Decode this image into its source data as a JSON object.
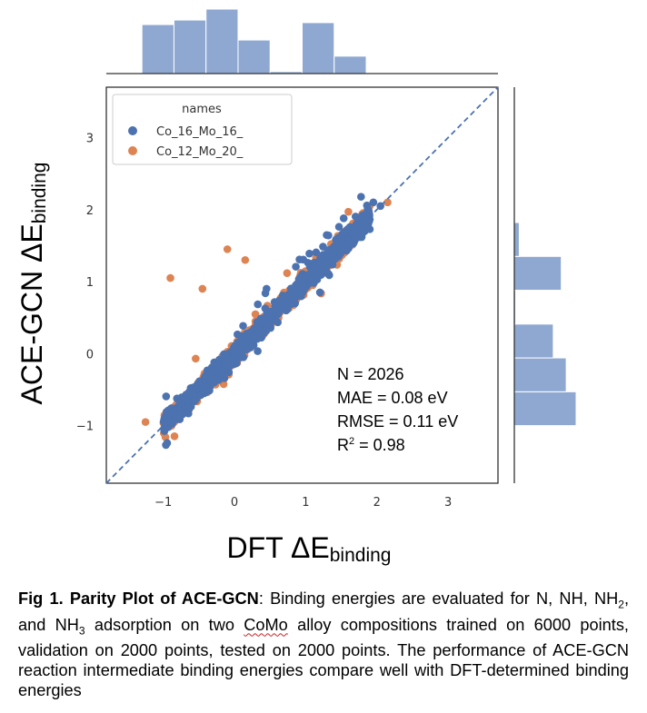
{
  "chart_data": {
    "type": "scatter",
    "xlabel_main": "DFT ΔE",
    "xlabel_sub": "binding",
    "ylabel_main": "ACE-GCN ΔE",
    "ylabel_sub": "binding",
    "xlim": [
      -1.8,
      3.7
    ],
    "ylim": [
      -1.8,
      3.7
    ],
    "xticks": [
      "-1",
      "0",
      "1",
      "2",
      "3"
    ],
    "yticks": [
      "-1",
      "0",
      "1",
      "2",
      "3"
    ],
    "legend": {
      "title": "names",
      "placement": "top-left",
      "entries": [
        {
          "label": "Co_16_Mo_16_",
          "color": "#4c72b0"
        },
        {
          "label": "Co_12_Mo_20_",
          "color": "#dd8452"
        }
      ]
    },
    "parity_line": {
      "style": "dashed",
      "color": "#4c72b0"
    },
    "stats": {
      "n": "N = 2026",
      "mae": "MAE = 0.08 eV",
      "rmse": "RMSE = 0.11 eV",
      "r2_main": "R",
      "r2_sup": "2",
      "r2_rest": " = 0.98"
    },
    "hist_color": "#8fa8d1",
    "top_histogram": [
      {
        "x0": -1.3,
        "x1": -0.85,
        "count": 0.76
      },
      {
        "x0": -0.85,
        "x1": -0.4,
        "count": 0.83
      },
      {
        "x0": -0.4,
        "x1": 0.05,
        "count": 1.0
      },
      {
        "x0": 0.05,
        "x1": 0.5,
        "count": 0.52
      },
      {
        "x0": 0.5,
        "x1": 0.95,
        "count": 0.03
      },
      {
        "x0": 0.95,
        "x1": 1.4,
        "count": 0.79
      },
      {
        "x0": 1.4,
        "x1": 1.85,
        "count": 0.27
      }
    ],
    "right_histogram": [
      {
        "y0": -1.0,
        "y1": -0.53,
        "count": 1.0
      },
      {
        "y0": -0.53,
        "y1": -0.06,
        "count": 0.84
      },
      {
        "y0": -0.06,
        "y1": 0.41,
        "count": 0.63
      },
      {
        "y0": 0.41,
        "y1": 0.88,
        "count": 0.02
      },
      {
        "y0": 0.88,
        "y1": 1.35,
        "count": 0.76
      },
      {
        "y0": 1.35,
        "y1": 1.82,
        "count": 0.08
      }
    ],
    "series": [
      {
        "name": "Co_16_Mo_16_",
        "color": "#4c72b0"
      },
      {
        "name": "Co_12_Mo_20_",
        "color": "#dd8452"
      }
    ],
    "point_count": 2026
  },
  "caption": {
    "bold": "Fig 1. Parity Plot of ACE-GCN",
    "t1": ": Binding energies are evaluated for N, NH, NH",
    "s1": "2",
    "t2": ", and NH",
    "s2": "3",
    "t3": " adsorption on two ",
    "squiggle": "CoMo",
    "t4": " alloy compositions trained on 6000 points, validation on 2000 points, tested on 2000 points. The performance of ACE-GCN reaction intermediate binding energies compare well with DFT-determined binding energies"
  }
}
